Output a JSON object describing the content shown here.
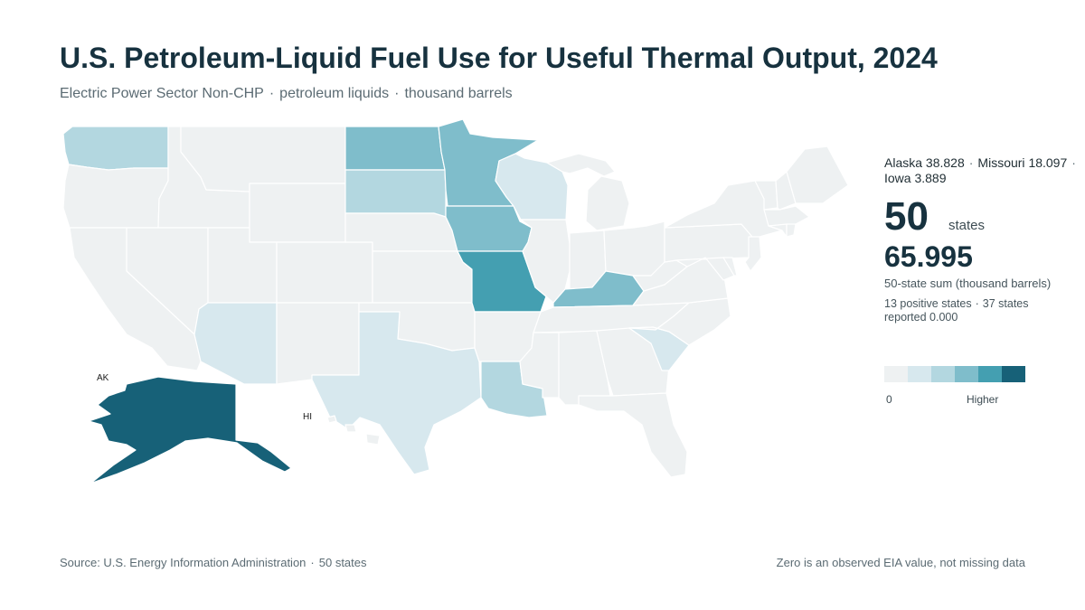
{
  "header": {
    "title": "U.S. Petroleum-Liquid Fuel Use for Useful Thermal Output, 2024",
    "subtitle_parts": [
      "Electric Power Sector Non-CHP",
      "petroleum liquids",
      "thousand barrels"
    ],
    "separator": "·"
  },
  "summary": {
    "top_states": [
      {
        "name": "Alaska",
        "value": "38.828"
      },
      {
        "name": "Missouri",
        "value": "18.097"
      },
      {
        "name": "Iowa",
        "value": "3.889"
      }
    ],
    "state_count": "50",
    "state_count_unit": "states",
    "total": "65.995",
    "total_label": "50-state sum (thousand barrels)",
    "positive_note": "13 positive states",
    "zero_note": "37 states reported 0.000"
  },
  "legend": {
    "low_label": "0",
    "high_label": "Higher",
    "colors": [
      "#eef1f2",
      "#d7e8ee",
      "#b3d7e0",
      "#7fbdcb",
      "#449fb1",
      "#176178"
    ]
  },
  "map": {
    "inset_labels": {
      "alaska": "AK",
      "hawaii": "HI"
    },
    "color_by_class": {
      "0": "#eef1f2",
      "1": "#d7e8ee",
      "2": "#b3d7e0",
      "3": "#7fbdcb",
      "4": "#449fb1",
      "5": "#176178"
    },
    "state_values": {
      "AK": 38.828,
      "MO": 18.097,
      "IA": 3.889
    },
    "state_class": {
      "WA": 2,
      "ND": 3,
      "MN": 3,
      "SD": 2,
      "WI": 1,
      "IA": 3,
      "MO": 4,
      "KY": 3,
      "AZ": 1,
      "TX": 1,
      "LA": 2,
      "SC": 1,
      "AK": 5
    }
  },
  "footer": {
    "source": "Source: U.S. Energy Information Administration",
    "count": "50 states",
    "note": "Zero is an observed EIA value, not missing data"
  }
}
